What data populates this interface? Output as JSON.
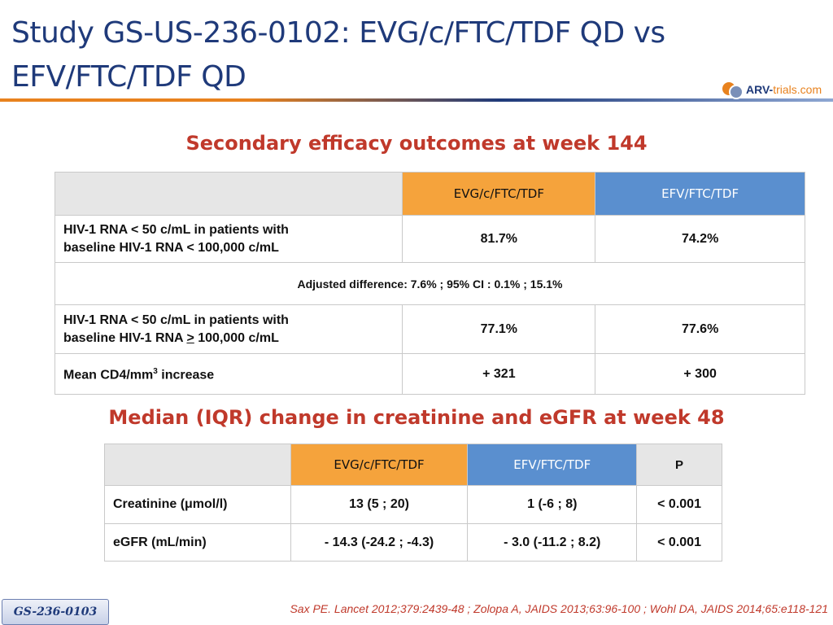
{
  "header": {
    "title_line1": "Study GS-US-236-0102: EVG/c/FTC/TDF QD vs",
    "title_line2": "EFV/FTC/TDF QD",
    "logo_main": "ARV-",
    "logo_accent": "trials",
    "logo_suffix": ".com"
  },
  "section1": {
    "heading": "Secondary efficacy outcomes at week 144",
    "columns": [
      "",
      "EVG/c/FTC/TDF",
      "EFV/FTC/TDF"
    ],
    "row1": {
      "label_line1": "HIV-1 RNA < 50 c/mL in patients with",
      "label_line2": "baseline HIV-1 RNA < 100,000 c/mL",
      "values": [
        "81.7%",
        "74.2%"
      ]
    },
    "adjusted_difference": "Adjusted difference: 7.6% ; 95% CI : 0.1% ; 15.1%",
    "row2": {
      "label_line1": "HIV-1 RNA < 50 c/mL in patients with",
      "label_line2_pre": "baseline HIV-1 RNA ",
      "label_line2_sym": ">",
      "label_line2_post": " 100,000 c/mL",
      "values": [
        "77.1%",
        "77.6%"
      ]
    },
    "row3": {
      "label_pre": "Mean CD4/mm",
      "label_sup": "3",
      "label_post": " increase",
      "values": [
        "+ 321",
        "+ 300"
      ]
    }
  },
  "section2": {
    "heading": "Median (IQR) change in creatinine and eGFR at week 48",
    "columns": [
      "",
      "EVG/c/FTC/TDF",
      "EFV/FTC/TDF",
      "P"
    ],
    "rows": [
      {
        "label": "Creatinine (μmol/l)",
        "values": [
          "13 (5 ; 20)",
          "1 (-6 ; 8)",
          "< 0.001"
        ]
      },
      {
        "label": "eGFR (mL/min)",
        "values": [
          "- 14.3 (-24.2 ; -4.3)",
          "- 3.0 (-11.2 ; 8.2)",
          "< 0.001"
        ]
      }
    ]
  },
  "footer": {
    "reference": "Sax PE. Lancet 2012;379:2439-48 ; Zolopa A, JAIDS 2013;63:96-100 ; Wohl DA, JAIDS 2014;65:e118-121",
    "study_tag": "GS-236-0103"
  },
  "colors": {
    "title": "#1f3a7a",
    "heading": "#c0392b",
    "evg_header": "#f5a33c",
    "efv_header": "#5a8fcf",
    "blank_header": "#e6e6e6"
  }
}
